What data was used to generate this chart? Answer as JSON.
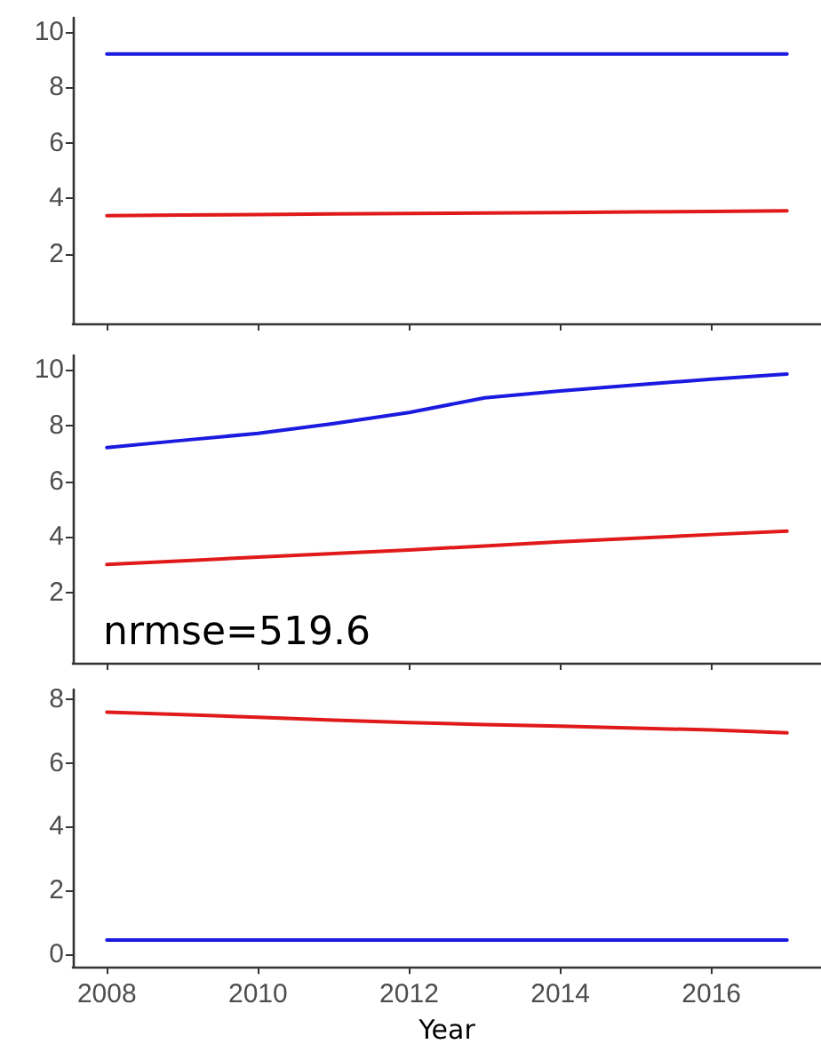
{
  "chart_data": [
    {
      "type": "line",
      "x": [
        2008,
        2009,
        2010,
        2011,
        2012,
        2013,
        2014,
        2015,
        2016,
        2017
      ],
      "marker": "none",
      "tick_labels": "y",
      "xlim": [
        2007.55,
        2017.45
      ],
      "ylim": [
        -0.5,
        10.5
      ],
      "xticks": [
        2008,
        2010,
        2012,
        2014,
        2016
      ],
      "yticks": [
        2,
        4,
        6,
        8,
        10
      ],
      "series": [
        {
          "color": "#1a1ae0",
          "values": [
            9.2,
            9.2,
            9.2,
            9.2,
            9.2,
            9.2,
            9.2,
            9.2,
            9.2,
            9.2
          ]
        },
        {
          "color": "#e01a1a",
          "values": [
            3.38,
            3.4,
            3.42,
            3.44,
            3.46,
            3.47,
            3.49,
            3.51,
            3.53,
            3.55
          ]
        }
      ]
    },
    {
      "type": "line",
      "x": [
        2008,
        2009,
        2010,
        2011,
        2012,
        2013,
        2014,
        2015,
        2016,
        2017
      ],
      "marker": "none",
      "tick_labels": "y",
      "xlim": [
        2007.55,
        2017.45
      ],
      "ylim": [
        -0.5,
        10.5
      ],
      "xticks": [
        2008,
        2010,
        2012,
        2014,
        2016
      ],
      "yticks": [
        2,
        4,
        6,
        8,
        10
      ],
      "annotations": [
        "nrmse=519.6"
      ],
      "series": [
        {
          "color": "#1a1ae0",
          "values": [
            7.2,
            7.46,
            7.71,
            8.06,
            8.46,
            8.98,
            9.23,
            9.44,
            9.65,
            9.83
          ]
        },
        {
          "color": "#e01a1a",
          "values": [
            3.02,
            3.15,
            3.28,
            3.41,
            3.54,
            3.68,
            3.83,
            3.96,
            4.09,
            4.21
          ]
        }
      ]
    },
    {
      "type": "line",
      "x": [
        2008,
        2009,
        2010,
        2011,
        2012,
        2013,
        2014,
        2015,
        2016,
        2017
      ],
      "marker": "none",
      "xlabel": "Year",
      "xlim": [
        2007.55,
        2017.45
      ],
      "ylim": [
        -0.4,
        8.3
      ],
      "xticks": [
        2008,
        2010,
        2012,
        2014,
        2016
      ],
      "yticks": [
        0,
        2,
        4,
        6,
        8
      ],
      "series": [
        {
          "color": "#e01a1a",
          "values": [
            7.59,
            7.51,
            7.43,
            7.34,
            7.26,
            7.2,
            7.15,
            7.09,
            7.03,
            6.94
          ]
        },
        {
          "color": "#1a1ae0",
          "values": [
            0.44,
            0.44,
            0.44,
            0.44,
            0.44,
            0.44,
            0.44,
            0.44,
            0.44,
            0.44
          ]
        }
      ]
    }
  ]
}
